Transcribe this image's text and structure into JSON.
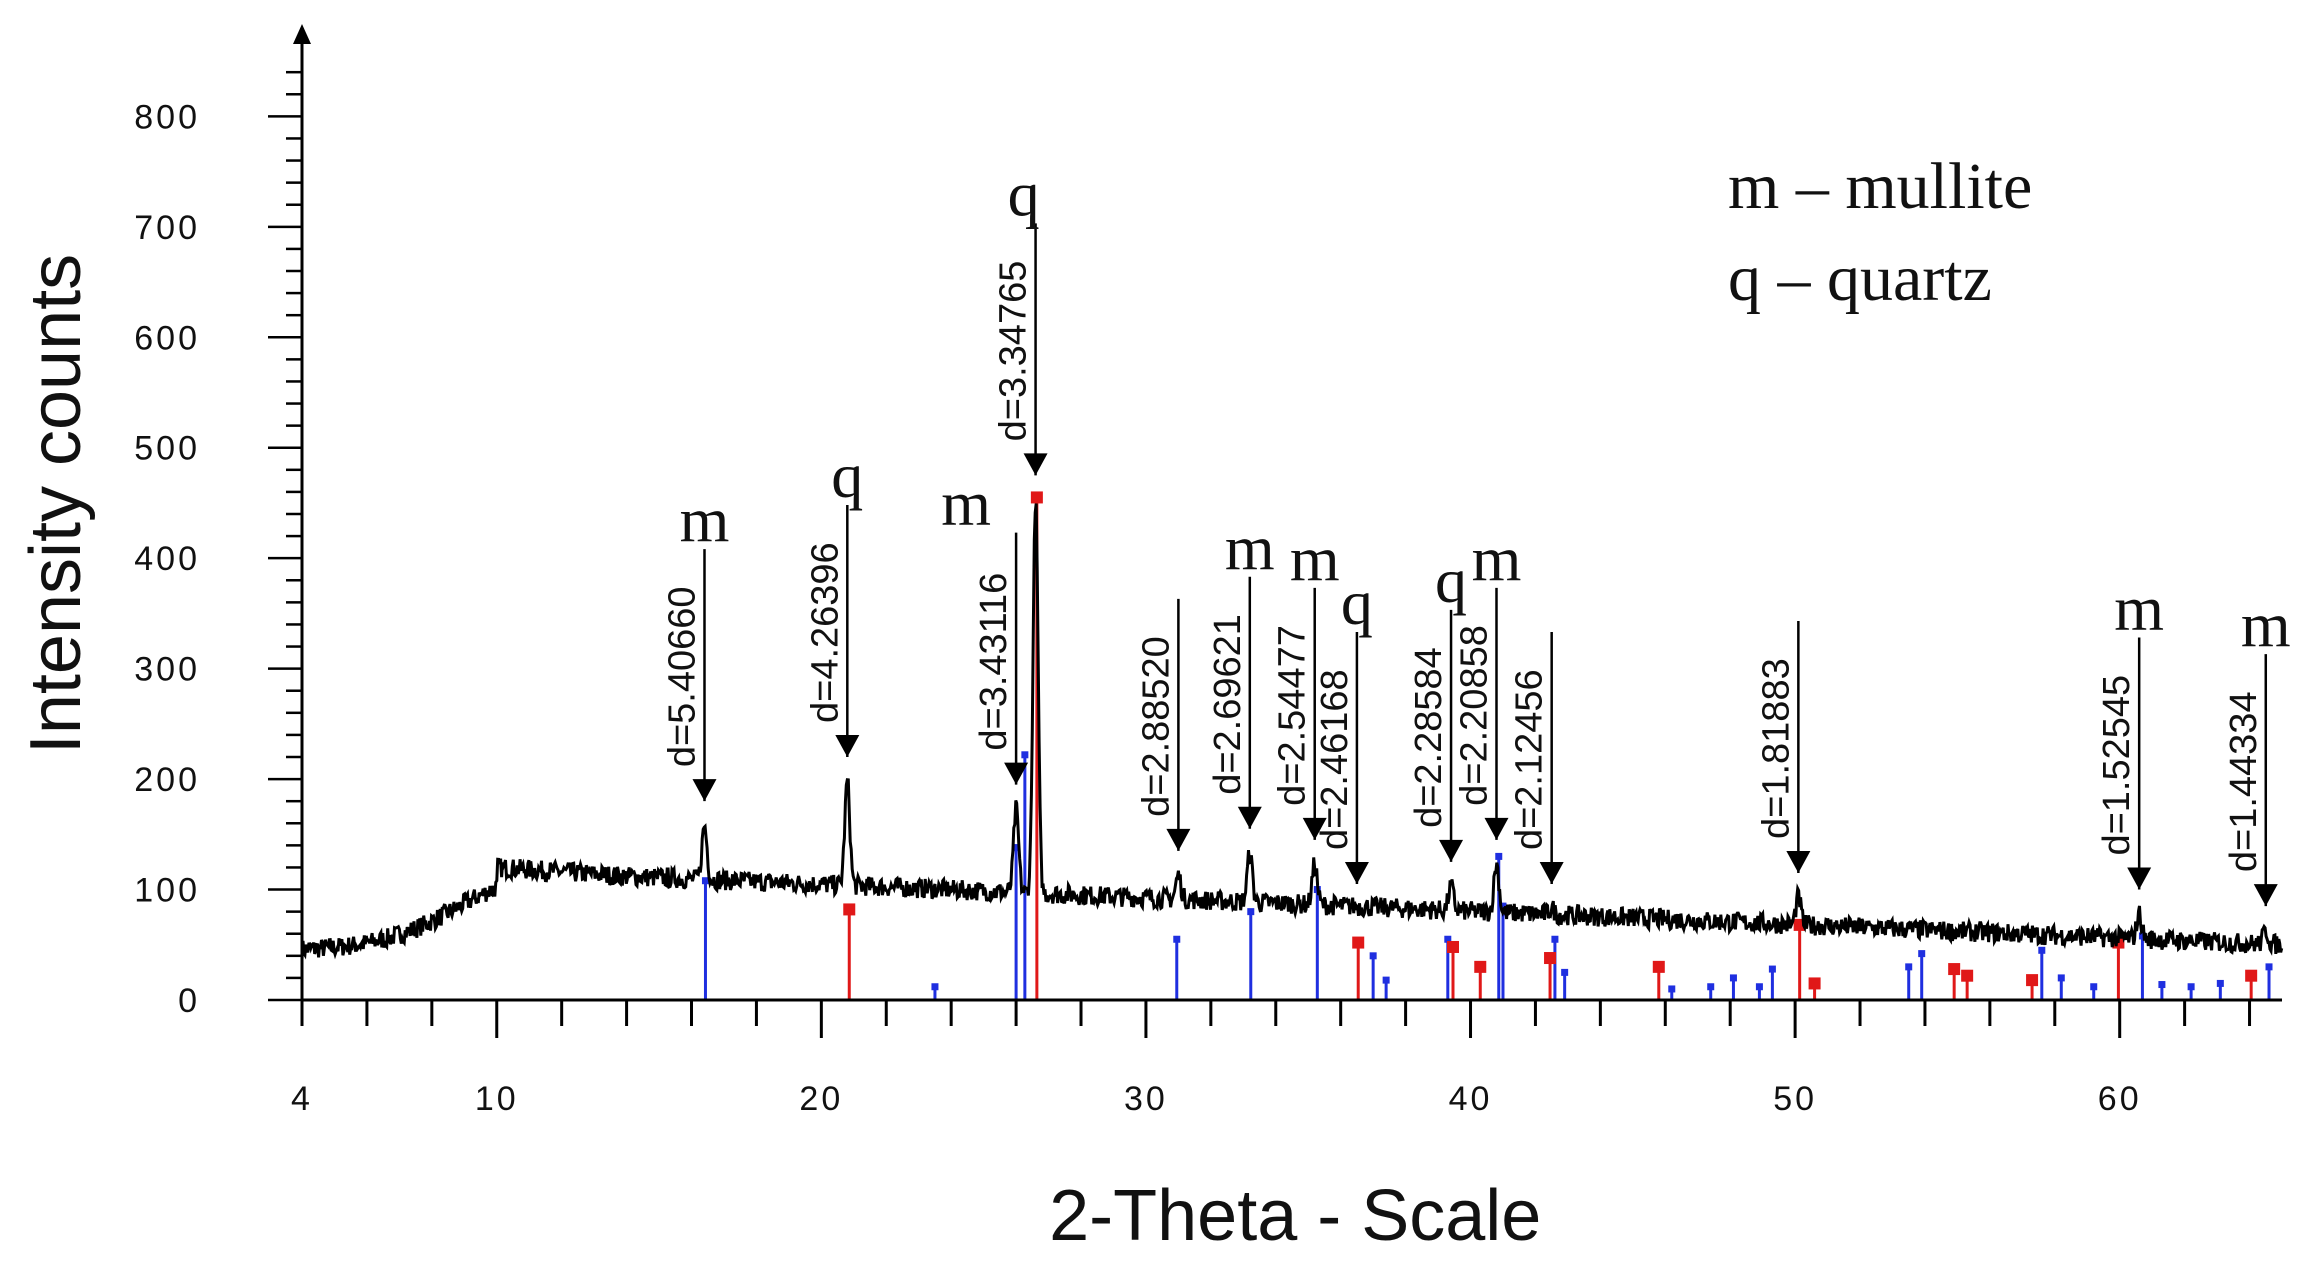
{
  "chart_data": {
    "type": "line",
    "xlabel": "2-Theta - Scale",
    "ylabel": "Intensity counts",
    "xlim": [
      4,
      65
    ],
    "ylim": [
      0,
      880
    ],
    "x_ticks": [
      "4",
      "10",
      "20",
      "30",
      "40",
      "50",
      "60"
    ],
    "y_ticks": [
      "0",
      "100",
      "200",
      "300",
      "400",
      "500",
      "600",
      "700",
      "800"
    ],
    "legend": [
      "m – mullite",
      "q – quartz"
    ],
    "peaks": [
      {
        "x": 16.4,
        "y": 180,
        "d": "d=5.40660",
        "phase": "m"
      },
      {
        "x": 20.8,
        "y": 220,
        "d": "d=4.26396",
        "phase": "q"
      },
      {
        "x": 26.0,
        "y": 195,
        "d": "d=3.43116",
        "phase": "m"
      },
      {
        "x": 26.6,
        "y": 475,
        "d": "d=3.34765",
        "phase": "q"
      },
      {
        "x": 31.0,
        "y": 135,
        "d": "d=2.88520",
        "phase": ""
      },
      {
        "x": 33.2,
        "y": 155,
        "d": "d=2.69621",
        "phase": "m"
      },
      {
        "x": 35.2,
        "y": 145,
        "d": "d=2.54477",
        "phase": "m"
      },
      {
        "x": 36.5,
        "y": 105,
        "d": "d=2.46168",
        "phase": "q"
      },
      {
        "x": 39.4,
        "y": 125,
        "d": "d=2.28584",
        "phase": "q"
      },
      {
        "x": 40.8,
        "y": 145,
        "d": "d=2.20858",
        "phase": "m"
      },
      {
        "x": 42.5,
        "y": 105,
        "d": "d=2.12456",
        "phase": ""
      },
      {
        "x": 50.1,
        "y": 115,
        "d": "d=1.81883",
        "phase": ""
      },
      {
        "x": 60.6,
        "y": 100,
        "d": "d=1.52545",
        "phase": "m"
      },
      {
        "x": 64.5,
        "y": 85,
        "d": "d=1.44334",
        "phase": "m"
      }
    ],
    "reference_quartz": [
      {
        "x": 20.86,
        "y": 82
      },
      {
        "x": 26.64,
        "y": 455
      },
      {
        "x": 36.54,
        "y": 52
      },
      {
        "x": 39.46,
        "y": 48
      },
      {
        "x": 40.3,
        "y": 30
      },
      {
        "x": 42.45,
        "y": 38
      },
      {
        "x": 45.8,
        "y": 30
      },
      {
        "x": 50.14,
        "y": 68
      },
      {
        "x": 50.6,
        "y": 15
      },
      {
        "x": 54.9,
        "y": 28
      },
      {
        "x": 55.3,
        "y": 22
      },
      {
        "x": 57.3,
        "y": 18
      },
      {
        "x": 59.96,
        "y": 52
      },
      {
        "x": 64.05,
        "y": 22
      }
    ],
    "reference_mullite": [
      {
        "x": 16.43,
        "y": 108
      },
      {
        "x": 23.5,
        "y": 12
      },
      {
        "x": 26.0,
        "y": 138
      },
      {
        "x": 26.27,
        "y": 222
      },
      {
        "x": 30.95,
        "y": 55
      },
      {
        "x": 33.23,
        "y": 80
      },
      {
        "x": 35.28,
        "y": 100
      },
      {
        "x": 37.0,
        "y": 40
      },
      {
        "x": 37.4,
        "y": 18
      },
      {
        "x": 39.3,
        "y": 55
      },
      {
        "x": 40.87,
        "y": 130
      },
      {
        "x": 41.0,
        "y": 85
      },
      {
        "x": 42.6,
        "y": 55
      },
      {
        "x": 42.9,
        "y": 25
      },
      {
        "x": 46.2,
        "y": 10
      },
      {
        "x": 47.4,
        "y": 12
      },
      {
        "x": 48.1,
        "y": 20
      },
      {
        "x": 48.9,
        "y": 12
      },
      {
        "x": 49.3,
        "y": 28
      },
      {
        "x": 53.5,
        "y": 30
      },
      {
        "x": 53.9,
        "y": 42
      },
      {
        "x": 57.6,
        "y": 45
      },
      {
        "x": 58.2,
        "y": 20
      },
      {
        "x": 59.2,
        "y": 12
      },
      {
        "x": 60.7,
        "y": 58
      },
      {
        "x": 61.3,
        "y": 14
      },
      {
        "x": 62.2,
        "y": 12
      },
      {
        "x": 63.1,
        "y": 15
      },
      {
        "x": 64.6,
        "y": 30
      }
    ]
  }
}
